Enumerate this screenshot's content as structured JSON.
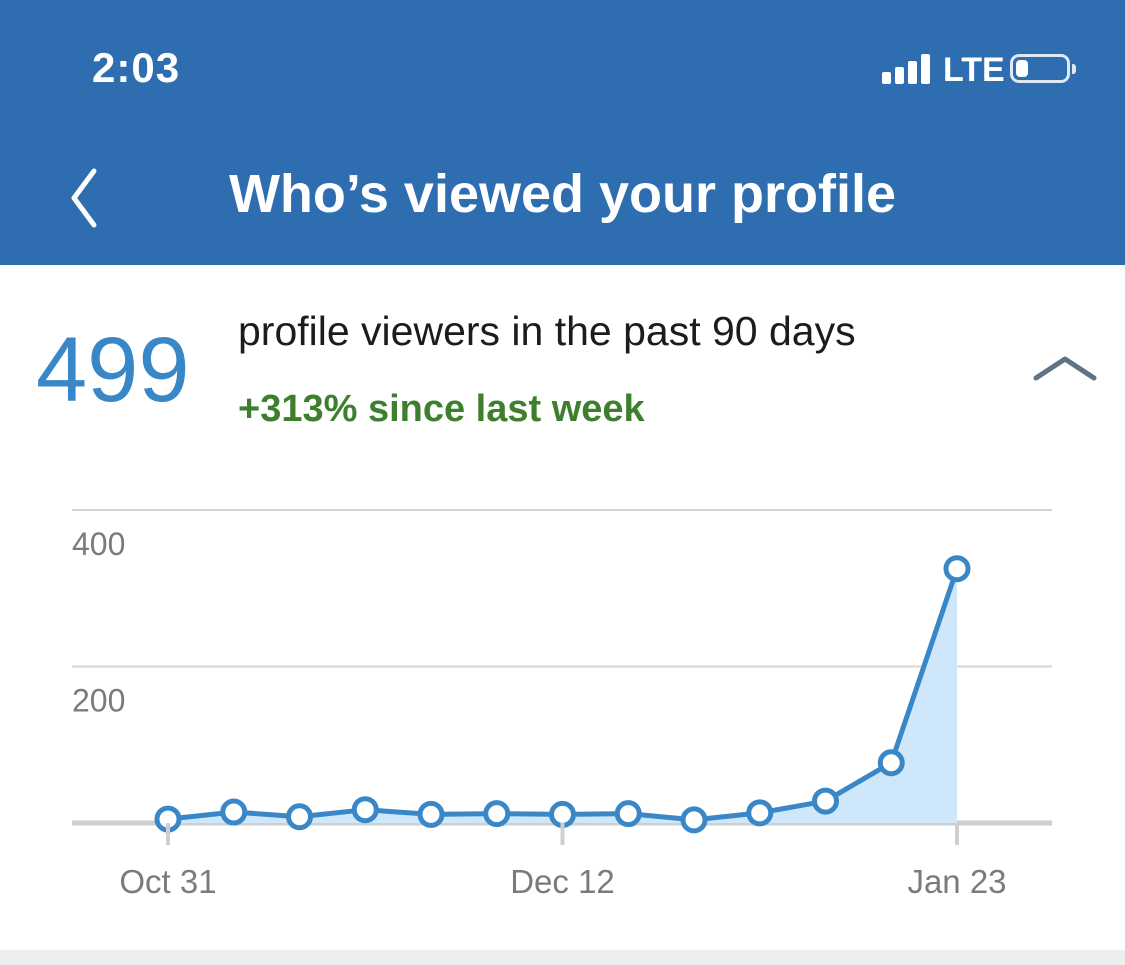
{
  "status_bar": {
    "time": "2:03",
    "network": "LTE",
    "icons": [
      "signal-icon",
      "battery-icon"
    ]
  },
  "header": {
    "title": "Who’s viewed your profile",
    "back_icon": "chevron-left-icon",
    "background_color": "#2e6eb0"
  },
  "summary": {
    "count": "499",
    "label": "profile viewers in the past 90 days",
    "change": "+313% since last week",
    "collapse_icon": "chevron-up-icon",
    "count_color": "#3a87c8",
    "change_color": "#3d7f2c"
  },
  "chart_data": {
    "type": "area",
    "title": "",
    "xlabel": "",
    "ylabel": "",
    "ylim": [
      0,
      400
    ],
    "yticks": [
      200,
      400
    ],
    "ytick_labels": [
      "200",
      "400"
    ],
    "xtick_labels": [
      "Oct 31",
      "Dec 12",
      "Jan 23"
    ],
    "xtick_indices": [
      0,
      6,
      12
    ],
    "grid": true,
    "line_color": "#3a87c8",
    "fill_color": "#cfe7fb",
    "shaded_from_index": 11,
    "series": [
      {
        "values": [
          5,
          14,
          8,
          17,
          11,
          12,
          11,
          12,
          4,
          13,
          28,
          77,
          325
        ]
      }
    ]
  }
}
